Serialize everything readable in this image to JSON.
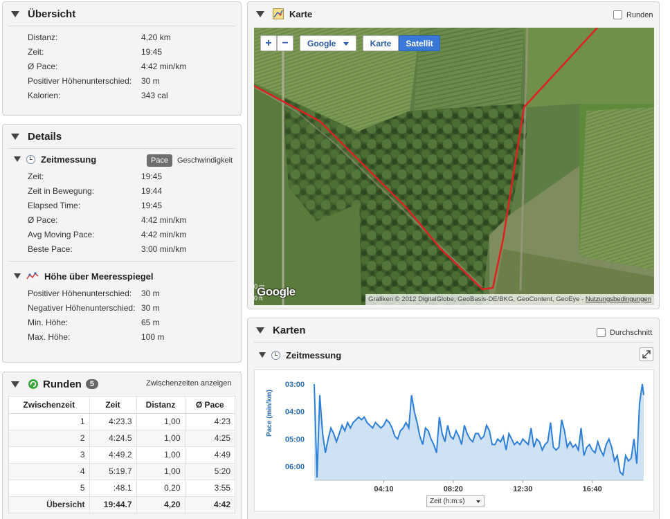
{
  "overview": {
    "title": "Übersicht",
    "rows": [
      {
        "label": "Distanz:",
        "value": "4,20 km"
      },
      {
        "label": "Zeit:",
        "value": "19:45"
      },
      {
        "label": "Ø Pace:",
        "value": "4:42 min/km"
      },
      {
        "label": "Positiver Höhenunterschied:",
        "value": "30 m"
      },
      {
        "label": "Kalorien:",
        "value": "343 cal"
      }
    ]
  },
  "details": {
    "title": "Details",
    "timing": {
      "title": "Zeitmessung",
      "pace_label": "Pace",
      "speed_label": "Geschwindigkeit",
      "rows": [
        {
          "label": "Zeit:",
          "value": "19:45"
        },
        {
          "label": "Zeit in Bewegung:",
          "value": "19:44"
        },
        {
          "label": "Elapsed Time:",
          "value": "19:45"
        },
        {
          "label": "Ø Pace:",
          "value": "4:42 min/km"
        },
        {
          "label": "Avg Moving Pace:",
          "value": "4:42 min/km"
        },
        {
          "label": "Beste Pace:",
          "value": "3:00 min/km"
        }
      ]
    },
    "elevation": {
      "title": "Höhe über Meeresspiegel",
      "rows": [
        {
          "label": "Positiver Höhenunterschied:",
          "value": "30 m"
        },
        {
          "label": "Negativer Höhenunterschied:",
          "value": "30 m"
        },
        {
          "label": "Min. Höhe:",
          "value": "65 m"
        },
        {
          "label": "Max. Höhe:",
          "value": "100 m"
        }
      ]
    }
  },
  "laps": {
    "title": "Runden",
    "count": "5",
    "splits_link": "Zwischenzeiten anzeigen",
    "columns": [
      "Zwischenzeit",
      "Zeit",
      "Distanz",
      "Ø Pace"
    ],
    "rows": [
      [
        "1",
        "4:23.3",
        "1,00",
        "4:23"
      ],
      [
        "2",
        "4:24.5",
        "1,00",
        "4:25"
      ],
      [
        "3",
        "4:49.2",
        "1,00",
        "4:49"
      ],
      [
        "4",
        "5:19.7",
        "1,00",
        "5:20"
      ],
      [
        "5",
        ":48.1",
        "0,20",
        "3:55"
      ]
    ],
    "summary": [
      "Übersicht",
      "19:44.7",
      "4,20",
      "4:42"
    ]
  },
  "map": {
    "title": "Karte",
    "laps_checkbox": "Runden",
    "provider": "Google",
    "type_map": "Karte",
    "type_satellite": "Satellit",
    "zoom_in": "+",
    "zoom_out": "−",
    "logo": "Google",
    "scale_m": "0 m",
    "scale_ft": "0 ft",
    "attribution": "Grafiken © 2012 DigitalGlobe, GeoBasis-DE/BKG, GeoContent, GeoEye - ",
    "terms": "Nutzungsbedingungen"
  },
  "charts": {
    "title": "Karten",
    "average_checkbox": "Durchschnitt",
    "sub_title": "Zeitmessung"
  },
  "chart_data": {
    "type": "area",
    "xlabel": "Zeit (h:m:s)",
    "ylabel": "Pace (min/km)",
    "y_inverted": true,
    "ylim": [
      3.0,
      6.5
    ],
    "yticks": [
      "03:00",
      "04:00",
      "05:00",
      "06:00"
    ],
    "ytick_values": [
      3.0,
      4.0,
      5.0,
      6.0
    ],
    "xlim": [
      0,
      1185
    ],
    "xticks": [
      "04:10",
      "08:20",
      "12:30",
      "16:40"
    ],
    "xtick_values": [
      250,
      500,
      750,
      1000
    ],
    "grid": false,
    "x": [
      0,
      10,
      20,
      30,
      40,
      50,
      60,
      70,
      80,
      90,
      100,
      110,
      120,
      130,
      140,
      150,
      160,
      170,
      180,
      190,
      200,
      210,
      220,
      230,
      240,
      250,
      260,
      270,
      280,
      290,
      300,
      310,
      320,
      330,
      340,
      350,
      360,
      370,
      380,
      390,
      400,
      410,
      420,
      430,
      440,
      450,
      460,
      470,
      480,
      490,
      500,
      510,
      520,
      530,
      540,
      550,
      560,
      570,
      580,
      590,
      600,
      610,
      620,
      630,
      640,
      650,
      660,
      670,
      680,
      690,
      700,
      710,
      720,
      730,
      740,
      750,
      760,
      770,
      780,
      790,
      800,
      810,
      820,
      830,
      840,
      850,
      860,
      870,
      880,
      890,
      900,
      910,
      920,
      930,
      940,
      950,
      960,
      970,
      980,
      990,
      1000,
      1010,
      1020,
      1030,
      1040,
      1050,
      1060,
      1070,
      1080,
      1090,
      1100,
      1110,
      1120,
      1130,
      1140,
      1150,
      1160,
      1170,
      1180,
      1185
    ],
    "series": [
      {
        "values": [
          3.0,
          6.4,
          3.4,
          4.8,
          5.5,
          5.0,
          4.6,
          4.8,
          5.1,
          4.8,
          4.5,
          4.7,
          4.4,
          4.6,
          4.4,
          4.3,
          4.2,
          4.3,
          4.2,
          4.4,
          4.5,
          4.6,
          4.4,
          4.5,
          4.6,
          4.5,
          4.3,
          4.4,
          4.6,
          4.9,
          5.0,
          4.7,
          4.6,
          4.4,
          4.6,
          3.4,
          4.0,
          4.4,
          4.9,
          5.2,
          4.6,
          4.7,
          5.0,
          5.2,
          5.5,
          4.2,
          4.8,
          5.1,
          4.5,
          4.9,
          5.0,
          4.7,
          4.9,
          5.2,
          4.5,
          4.8,
          5.0,
          5.1,
          4.8,
          4.8,
          5.0,
          4.9,
          4.5,
          4.7,
          5.2,
          5.2,
          5.0,
          5.1,
          4.9,
          5.4,
          4.8,
          5.0,
          5.2,
          5.1,
          5.2,
          5.0,
          5.1,
          5.2,
          4.6,
          5.3,
          5.0,
          5.1,
          5.4,
          5.2,
          5.1,
          4.4,
          5.3,
          5.4,
          5.3,
          4.3,
          4.7,
          5.3,
          5.1,
          5.3,
          5.2,
          5.4,
          4.6,
          5.6,
          5.3,
          5.2,
          5.4,
          5.5,
          5.1,
          5.4,
          5.6,
          5.2,
          5.0,
          5.3,
          5.8,
          5.6,
          6.2,
          6.3,
          5.6,
          5.8,
          5.7,
          5.0,
          5.9,
          3.7,
          3.0,
          3.4
        ]
      }
    ]
  }
}
